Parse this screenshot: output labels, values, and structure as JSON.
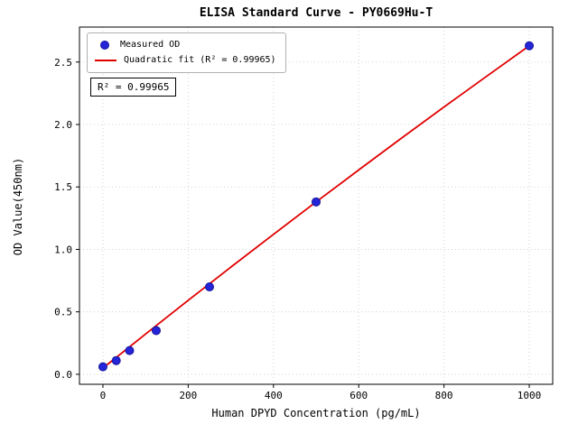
{
  "chart_data": {
    "type": "scatter",
    "title": "ELISA Standard Curve - PY0669Hu-T",
    "xlabel": "Human DPYD Concentration (pg/mL)",
    "ylabel": "OD Value(450nm)",
    "xlim": [
      -55,
      1055
    ],
    "ylim": [
      -0.08,
      2.78
    ],
    "xticks": [
      0,
      200,
      400,
      600,
      800,
      1000
    ],
    "xtick_labels": [
      "0",
      "200",
      "400",
      "600",
      "800",
      "1000"
    ],
    "yticks": [
      0.0,
      0.5,
      1.0,
      1.5,
      2.0,
      2.5
    ],
    "ytick_labels": [
      "0.0",
      "0.5",
      "1.0",
      "1.5",
      "2.0",
      "2.5"
    ],
    "grid": "dotted",
    "legend_position": "upper-left",
    "annotation": "R² = 0.99965",
    "colors": {
      "scatter_fill": "#2424d8",
      "scatter_edge": "#15159d",
      "fit_line": "#e00000",
      "grid": "#c8c8c8",
      "frame": "#000000"
    },
    "series": [
      {
        "name": "Measured OD",
        "type": "scatter",
        "x": [
          0,
          31.25,
          62.5,
          125,
          250,
          500,
          1000
        ],
        "y": [
          0.06,
          0.11,
          0.19,
          0.35,
          0.7,
          1.38,
          2.63
        ]
      },
      {
        "name": "Quadratic fit (R² = 0.99965)",
        "type": "line",
        "x": [
          0,
          100,
          200,
          300,
          400,
          500,
          600,
          700,
          800,
          900,
          1000
        ],
        "y": [
          0.05,
          0.322,
          0.592,
          0.858,
          1.12,
          1.38,
          1.636,
          1.89,
          2.14,
          2.386,
          2.63
        ]
      }
    ],
    "r_squared": 0.99965
  }
}
